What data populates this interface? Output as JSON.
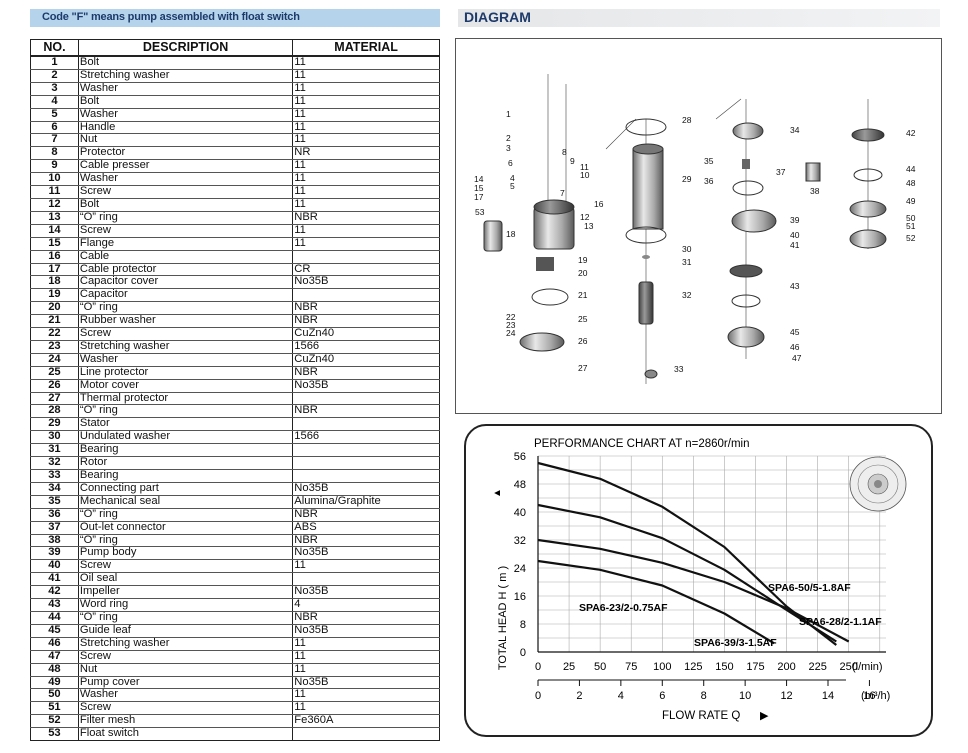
{
  "header": {
    "note": "Code \"F\" means pump assembled with float switch",
    "diagram_title": "DIAGRAM"
  },
  "parts_table": {
    "headers": [
      "NO.",
      "DESCRIPTION",
      "MATERIAL"
    ],
    "rows": [
      [
        "1",
        "Bolt",
        "11"
      ],
      [
        "2",
        "Stretching washer",
        "11"
      ],
      [
        "3",
        "Washer",
        "11"
      ],
      [
        "4",
        "Bolt",
        "11"
      ],
      [
        "5",
        "Washer",
        "11"
      ],
      [
        "6",
        "Handle",
        "11"
      ],
      [
        "7",
        "Nut",
        "11"
      ],
      [
        "8",
        "Protector",
        "NR"
      ],
      [
        "9",
        "Cable presser",
        "11"
      ],
      [
        "10",
        "Washer",
        "11"
      ],
      [
        "11",
        "Screw",
        "11"
      ],
      [
        "12",
        "Bolt",
        "11"
      ],
      [
        "13",
        "“O” ring",
        "NBR"
      ],
      [
        "14",
        "Screw",
        "11"
      ],
      [
        "15",
        "Flange",
        "11"
      ],
      [
        "16",
        "Cable",
        ""
      ],
      [
        "17",
        "Cable protector",
        "CR"
      ],
      [
        "18",
        "Capacitor cover",
        "No35B"
      ],
      [
        "19",
        "Capacitor",
        ""
      ],
      [
        "20",
        "“O” ring",
        "NBR"
      ],
      [
        "21",
        "Rubber washer",
        "NBR"
      ],
      [
        "22",
        "Screw",
        "CuZn40"
      ],
      [
        "23",
        "Stretching washer",
        "1566"
      ],
      [
        "24",
        "Washer",
        "CuZn40"
      ],
      [
        "25",
        "Line protector",
        "NBR"
      ],
      [
        "26",
        "Motor cover",
        "No35B"
      ],
      [
        "27",
        "Thermal protector",
        ""
      ],
      [
        "28",
        "“O” ring",
        "NBR"
      ],
      [
        "29",
        "Stator",
        ""
      ],
      [
        "30",
        "Undulated washer",
        "1566"
      ],
      [
        "31",
        "Bearing",
        ""
      ],
      [
        "32",
        "Rotor",
        ""
      ],
      [
        "33",
        "Bearing",
        ""
      ],
      [
        "34",
        "Connecting part",
        "No35B"
      ],
      [
        "35",
        "Mechanical seal",
        "Alumina/Graphite"
      ],
      [
        "36",
        "“O” ring",
        "NBR"
      ],
      [
        "37",
        "Out-let connector",
        "ABS"
      ],
      [
        "38",
        "“O” ring",
        "NBR"
      ],
      [
        "39",
        "Pump body",
        "No35B"
      ],
      [
        "40",
        "Screw",
        "11"
      ],
      [
        "41",
        "Oil seal",
        ""
      ],
      [
        "42",
        "Impeller",
        "No35B"
      ],
      [
        "43",
        "Word ring",
        "4"
      ],
      [
        "44",
        "“O” ring",
        "NBR"
      ],
      [
        "45",
        "Guide leaf",
        "No35B"
      ],
      [
        "46",
        "Stretching washer",
        "11"
      ],
      [
        "47",
        "Screw",
        "11"
      ],
      [
        "48",
        "Nut",
        "11"
      ],
      [
        "49",
        "Pump cover",
        "No35B"
      ],
      [
        "50",
        "Washer",
        "11"
      ],
      [
        "51",
        "Screw",
        "11"
      ],
      [
        "52",
        "Filter mesh",
        "Fe360A"
      ],
      [
        "53",
        "Float switch",
        ""
      ]
    ]
  },
  "diagram_labels": [
    "1",
    "2",
    "3",
    "4",
    "5",
    "6",
    "7",
    "8",
    "9",
    "10",
    "11",
    "12",
    "13",
    "14",
    "15",
    "16",
    "17",
    "18",
    "19",
    "20",
    "21",
    "22",
    "23",
    "24",
    "25",
    "26",
    "27",
    "28",
    "29",
    "30",
    "31",
    "32",
    "33",
    "34",
    "35",
    "36",
    "37",
    "38",
    "39",
    "40",
    "41",
    "42",
    "43",
    "44",
    "45",
    "46",
    "47",
    "48",
    "49",
    "50",
    "51",
    "52",
    "53"
  ],
  "chart_data": {
    "type": "line",
    "title": "PERFORMANCE CHART AT  n=2860r/min",
    "ylabel": "TOTAL HEAD  H ( m )",
    "y_arrow": "▲",
    "xlabel": "FLOW RATE Q",
    "x_arrow": "▶",
    "x_unit_lmin": "(l/min)",
    "x_unit_m3h": "(m³/h)",
    "ylim": [
      0,
      56
    ],
    "xlim": [
      0,
      280
    ],
    "yticks": [
      0,
      8,
      16,
      24,
      32,
      40,
      48,
      56
    ],
    "xticks_lmin": [
      0,
      25,
      50,
      75,
      100,
      125,
      150,
      175,
      200,
      225,
      250
    ],
    "xticks_m3h": [
      0,
      2,
      4,
      6,
      8,
      10,
      12,
      14,
      16
    ],
    "grid": true,
    "series": [
      {
        "name": "SPA6-50/5-1.8AF",
        "x": [
          0,
          50,
          100,
          150,
          200,
          240
        ],
        "y": [
          54,
          49.5,
          41.5,
          30,
          13,
          2
        ]
      },
      {
        "name": "SPA6-39/3-1.5AF",
        "x": [
          0,
          50,
          100,
          150,
          200,
          240
        ],
        "y": [
          42,
          38.5,
          32.5,
          23.5,
          12,
          3
        ]
      },
      {
        "name": "SPA6-28/2-1.1AF",
        "x": [
          0,
          50,
          100,
          150,
          200,
          250
        ],
        "y": [
          32,
          29.5,
          25.5,
          20,
          12.5,
          3
        ]
      },
      {
        "name": "SPA6-23/2-0.75AF",
        "x": [
          0,
          50,
          100,
          150,
          190
        ],
        "y": [
          26,
          23.5,
          19,
          11,
          2.5
        ]
      }
    ]
  }
}
